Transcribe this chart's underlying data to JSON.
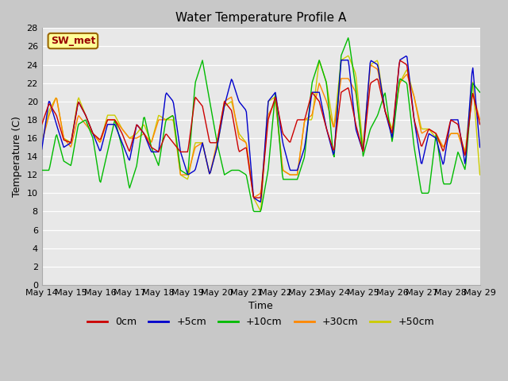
{
  "title": "Water Temperature Profile A",
  "xlabel": "Time",
  "ylabel": "Temperature (C)",
  "ylim": [
    0,
    28
  ],
  "yticks": [
    0,
    2,
    4,
    6,
    8,
    10,
    12,
    14,
    16,
    18,
    20,
    22,
    24,
    26,
    28
  ],
  "x_labels": [
    "May 14",
    "May 15",
    "May 16",
    "May 17",
    "May 18",
    "May 19",
    "May 20",
    "May 21",
    "May 22",
    "May 23",
    "May 24",
    "May 25",
    "May 26",
    "May 27",
    "May 28",
    "May 29"
  ],
  "legend_labels": [
    "0cm",
    "+5cm",
    "+10cm",
    "+30cm",
    "+50cm"
  ],
  "line_colors": [
    "#cc0000",
    "#0000cc",
    "#00bb00",
    "#ff8800",
    "#cccc00"
  ],
  "bg_color": "#e8e8e8",
  "annotation_text": "SW_met",
  "annotation_bg": "#ffff99",
  "annotation_border": "#996600",
  "annotation_text_color": "#990000"
}
